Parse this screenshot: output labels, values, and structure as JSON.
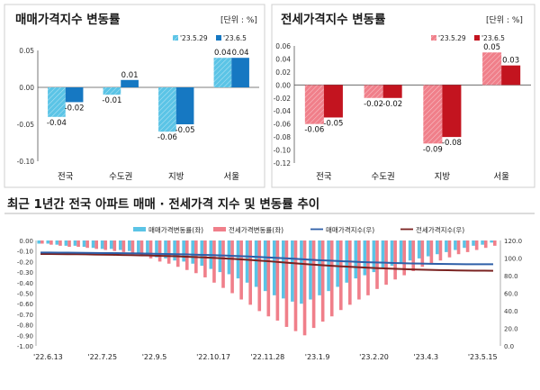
{
  "colors": {
    "sale_prev": "#5bc4e6",
    "sale_curr": "#1678c2",
    "jeonse_prev": "#f07f8a",
    "jeonse_curr": "#c3141f",
    "sale_index_line": "#2e5fa8",
    "jeonse_index_line": "#7a2220",
    "panel_border": "#cfcfcf",
    "section_rule": "#b8b8b8"
  },
  "chart_data": [
    {
      "type": "bar",
      "title": "매매가격지수 변동률",
      "unit": "[단위 : %]",
      "categories": [
        "전국",
        "수도권",
        "지방",
        "서울"
      ],
      "series": [
        {
          "name": "'23.5.29",
          "values": [
            -0.04,
            -0.01,
            -0.06,
            0.04
          ]
        },
        {
          "name": "'23.6.5",
          "values": [
            -0.02,
            0.01,
            -0.05,
            0.04
          ]
        }
      ],
      "data_labels": [
        [
          "-0.04",
          "-0.01",
          "-0.06",
          "0.04"
        ],
        [
          "-0.02",
          "0.01",
          "-0.05",
          "0.04"
        ]
      ],
      "ylim": [
        -0.1,
        0.05
      ],
      "yticks": [
        0.05,
        0.0,
        -0.05,
        -0.1
      ],
      "ytick_labels": [
        "0.05",
        "0.00",
        "-0.05",
        "-0.10"
      ],
      "grid": false,
      "legend": "top-right",
      "pattern_first_series": true
    },
    {
      "type": "bar",
      "title": "전세가격지수 변동률",
      "unit": "[단위 : %]",
      "categories": [
        "전국",
        "수도권",
        "지방",
        "서울"
      ],
      "series": [
        {
          "name": "'23.5.29",
          "values": [
            -0.06,
            -0.02,
            -0.09,
            0.05
          ]
        },
        {
          "name": "'23.6.5",
          "values": [
            -0.05,
            -0.02,
            -0.08,
            0.03
          ]
        }
      ],
      "data_labels": [
        [
          "-0.06",
          "-0.02",
          "-0.09",
          "0.05"
        ],
        [
          "-0.05",
          "-0.02",
          "-0.08",
          "0.03"
        ]
      ],
      "ylim": [
        -0.12,
        0.06
      ],
      "yticks": [
        0.06,
        0.04,
        0.02,
        0.0,
        -0.02,
        -0.04,
        -0.06,
        -0.08,
        -0.1,
        -0.12
      ],
      "ytick_labels": [
        "0.06",
        "0.04",
        "0.02",
        "0.00",
        "-0.02",
        "-0.04",
        "-0.06",
        "-0.08",
        "-0.10",
        "-0.12"
      ],
      "grid": false,
      "legend": "top-right",
      "pattern_first_series": true
    },
    {
      "type": "bar+line",
      "title": "최근 1년간 전국 아파트 매매 · 전세가격 지수 및 변동률 추이",
      "legend": [
        "매매가격변동률(좌)",
        "전세가격변동률(좌)",
        "매매가격지수(우)",
        "전세가격지수(우)"
      ],
      "legend_position": "top",
      "x_tick_labels": [
        "'22.6.13",
        "'22.7.25",
        "'22.9.5",
        "'22.10.17",
        "'22.11.28",
        "'23.1.9",
        "'23.2.20",
        "'23.4.3",
        "'23.5.15"
      ],
      "x_tick_index": [
        0,
        6,
        12,
        18,
        24,
        30,
        36,
        42,
        48
      ],
      "ylim_left": [
        -1.0,
        0.0
      ],
      "yticks_left": [
        "0.00",
        "-0.10",
        "-0.20",
        "-0.30",
        "-0.40",
        "-0.50",
        "-0.60",
        "-0.70",
        "-0.80",
        "-0.90",
        "-1.00"
      ],
      "ylim_right": [
        0.0,
        120.0
      ],
      "yticks_right": [
        "120.0",
        "100.0",
        "80.0",
        "60.0",
        "40.0",
        "20.0",
        "0.0"
      ],
      "sale_change": [
        -0.03,
        -0.03,
        -0.04,
        -0.05,
        -0.05,
        -0.06,
        -0.07,
        -0.08,
        -0.08,
        -0.09,
        -0.1,
        -0.12,
        -0.14,
        -0.16,
        -0.17,
        -0.19,
        -0.2,
        -0.22,
        -0.24,
        -0.27,
        -0.3,
        -0.32,
        -0.36,
        -0.4,
        -0.44,
        -0.48,
        -0.52,
        -0.55,
        -0.58,
        -0.6,
        -0.56,
        -0.52,
        -0.48,
        -0.44,
        -0.4,
        -0.36,
        -0.33,
        -0.3,
        -0.27,
        -0.24,
        -0.22,
        -0.19,
        -0.17,
        -0.15,
        -0.13,
        -0.11,
        -0.09,
        -0.07,
        -0.05,
        -0.04,
        -0.02
      ],
      "jeonse_change": [
        -0.03,
        -0.04,
        -0.05,
        -0.06,
        -0.06,
        -0.07,
        -0.08,
        -0.09,
        -0.1,
        -0.11,
        -0.13,
        -0.15,
        -0.17,
        -0.2,
        -0.22,
        -0.25,
        -0.28,
        -0.31,
        -0.35,
        -0.4,
        -0.45,
        -0.5,
        -0.56,
        -0.61,
        -0.67,
        -0.72,
        -0.76,
        -0.82,
        -0.86,
        -0.9,
        -0.83,
        -0.77,
        -0.72,
        -0.66,
        -0.61,
        -0.56,
        -0.52,
        -0.46,
        -0.42,
        -0.37,
        -0.33,
        -0.29,
        -0.25,
        -0.22,
        -0.19,
        -0.16,
        -0.13,
        -0.11,
        -0.09,
        -0.07,
        -0.05
      ],
      "sale_index": [
        106.3,
        106.3,
        106.2,
        106.1,
        106.0,
        105.9,
        105.8,
        105.7,
        105.6,
        105.5,
        105.4,
        105.2,
        105.0,
        104.8,
        104.6,
        104.4,
        104.2,
        103.9,
        103.6,
        103.3,
        103.0,
        102.6,
        102.2,
        101.8,
        101.3,
        100.8,
        100.3,
        99.8,
        99.2,
        98.6,
        98.0,
        97.5,
        97.0,
        96.5,
        96.1,
        95.7,
        95.3,
        95.0,
        94.7,
        94.4,
        94.1,
        93.9,
        93.7,
        93.5,
        93.3,
        93.2,
        93.1,
        93.0,
        92.9,
        92.9,
        92.9
      ],
      "jeonse_index": [
        104.6,
        104.6,
        104.5,
        104.4,
        104.3,
        104.2,
        104.0,
        103.9,
        103.7,
        103.5,
        103.3,
        103.1,
        102.9,
        102.6,
        102.3,
        102.0,
        101.6,
        101.2,
        100.8,
        100.3,
        99.8,
        99.2,
        98.6,
        97.9,
        97.2,
        96.5,
        95.7,
        94.9,
        94.1,
        93.3,
        92.6,
        91.9,
        91.3,
        90.7,
        90.1,
        89.6,
        89.1,
        88.6,
        88.2,
        87.8,
        87.4,
        87.1,
        86.8,
        86.5,
        86.3,
        86.1,
        85.9,
        85.8,
        85.7,
        85.6,
        85.5
      ]
    }
  ]
}
